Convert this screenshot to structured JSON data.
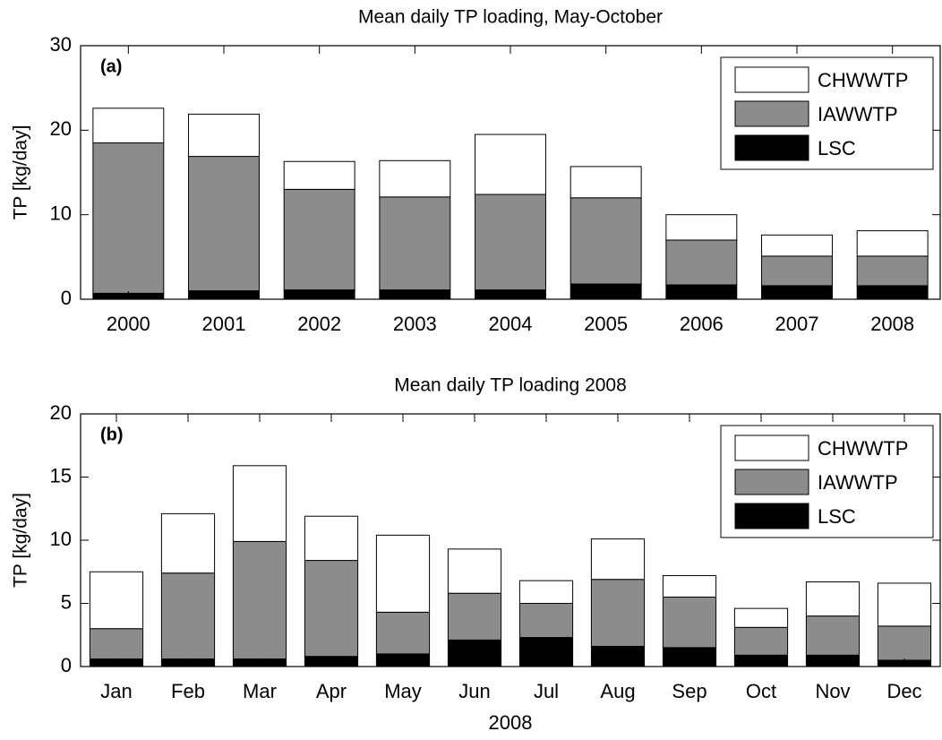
{
  "chart_data": [
    {
      "type": "bar",
      "stacked": true,
      "title": "Mean daily TP loading, May-October",
      "panel_label": "(a)",
      "ylabel": "TP [kg/day]",
      "categories": [
        "2000",
        "2001",
        "2002",
        "2003",
        "2004",
        "2005",
        "2006",
        "2007",
        "2008"
      ],
      "series": [
        {
          "name": "LSC",
          "color": "#000000",
          "values": [
            0.7,
            1.0,
            1.1,
            1.1,
            1.1,
            1.8,
            1.7,
            1.6,
            1.6
          ]
        },
        {
          "name": "IAWWTP",
          "color": "#8c8c8c",
          "values": [
            17.8,
            15.9,
            11.9,
            11.0,
            11.3,
            10.2,
            5.3,
            3.5,
            3.5
          ]
        },
        {
          "name": "CHWWTP",
          "color": "#ffffff",
          "values": [
            4.1,
            5.0,
            3.3,
            4.3,
            7.1,
            3.7,
            3.0,
            2.5,
            3.0
          ]
        }
      ],
      "ylim": [
        0,
        30
      ],
      "yticks": [
        0,
        10,
        20,
        30
      ],
      "legend": "upper right"
    },
    {
      "type": "bar",
      "stacked": true,
      "title": "Mean daily TP loading 2008",
      "panel_label": "(b)",
      "ylabel": "TP [kg/day]",
      "xlabel": "2008",
      "categories": [
        "Jan",
        "Feb",
        "Mar",
        "Apr",
        "May",
        "Jun",
        "Jul",
        "Aug",
        "Sep",
        "Oct",
        "Nov",
        "Dec"
      ],
      "series": [
        {
          "name": "LSC",
          "color": "#000000",
          "values": [
            0.6,
            0.6,
            0.6,
            0.8,
            1.0,
            2.1,
            2.3,
            1.6,
            1.5,
            0.9,
            0.9,
            0.5
          ]
        },
        {
          "name": "IAWWTP",
          "color": "#8c8c8c",
          "values": [
            2.4,
            6.8,
            9.3,
            7.6,
            3.3,
            3.7,
            2.7,
            5.3,
            4.0,
            2.2,
            3.1,
            2.7
          ]
        },
        {
          "name": "CHWWTP",
          "color": "#ffffff",
          "values": [
            4.5,
            4.7,
            6.0,
            3.5,
            6.1,
            3.5,
            1.8,
            3.2,
            1.7,
            1.5,
            2.7,
            3.4
          ]
        }
      ],
      "ylim": [
        0,
        20
      ],
      "yticks": [
        0,
        5,
        10,
        15,
        20
      ],
      "legend": "upper right"
    }
  ]
}
